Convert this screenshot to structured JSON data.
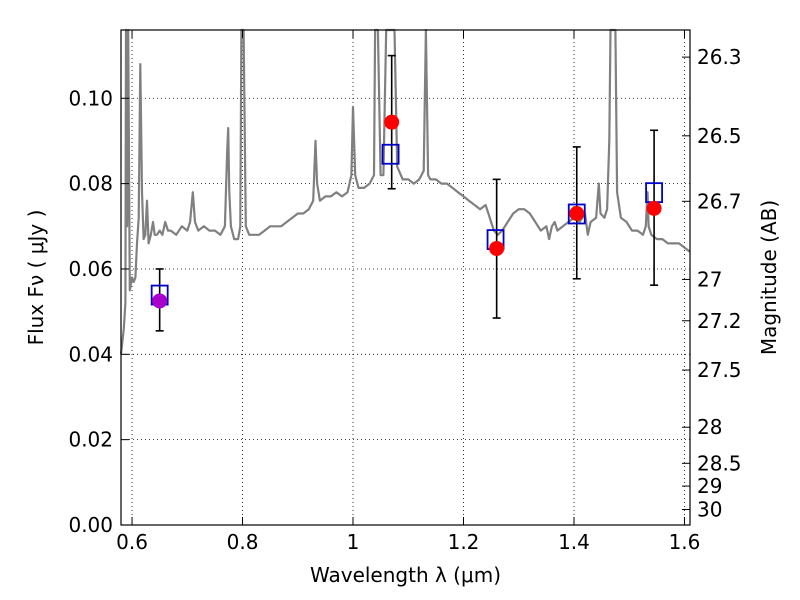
{
  "chart_data": {
    "type": "scatter",
    "xlabel": "Wavelength  λ (μm)",
    "ylabel": "Flux  Fν  ( μJy )",
    "ylabel_right": "Magnitude (AB)",
    "xlim": [
      0.58,
      1.61
    ],
    "ylim": [
      0.0,
      0.116
    ],
    "grid": true,
    "x_ticks": [
      0.6,
      0.8,
      1.0,
      1.2,
      1.4,
      1.6
    ],
    "x_tick_labels": [
      "0.6",
      "0.8",
      "1",
      "1.2",
      "1.4",
      "1.6"
    ],
    "y_ticks": [
      0.0,
      0.02,
      0.04,
      0.06,
      0.08,
      0.1
    ],
    "y_tick_labels": [
      "0.00",
      "0.02",
      "0.04",
      "0.06",
      "0.08",
      "0.10"
    ],
    "right_ticks": [
      {
        "label": "26.3",
        "value": 26.3
      },
      {
        "label": "26.5",
        "value": 26.5
      },
      {
        "label": "26.7",
        "value": 26.7
      },
      {
        "label": "27",
        "value": 27.0
      },
      {
        "label": "27.2",
        "value": 27.2
      },
      {
        "label": "27.5",
        "value": 27.5
      },
      {
        "label": "28",
        "value": 28.0
      },
      {
        "label": "28.5",
        "value": 28.5
      },
      {
        "label": "29",
        "value": 29.0
      },
      {
        "label": "30",
        "value": 30.0
      }
    ],
    "model_spectrum": {
      "color": "#808080",
      "points": [
        [
          0.58,
          0.04
        ],
        [
          0.585,
          0.046
        ],
        [
          0.588,
          0.052
        ],
        [
          0.589,
          0.12
        ],
        [
          0.591,
          0.07
        ],
        [
          0.593,
          0.12
        ],
        [
          0.596,
          0.055
        ],
        [
          0.6,
          0.058
        ],
        [
          0.603,
          0.057
        ],
        [
          0.606,
          0.058
        ],
        [
          0.609,
          0.066
        ],
        [
          0.612,
          0.072
        ],
        [
          0.615,
          0.108
        ],
        [
          0.618,
          0.078
        ],
        [
          0.621,
          0.067
        ],
        [
          0.624,
          0.068
        ],
        [
          0.627,
          0.076
        ],
        [
          0.63,
          0.066
        ],
        [
          0.634,
          0.068
        ],
        [
          0.638,
          0.071
        ],
        [
          0.641,
          0.068
        ],
        [
          0.645,
          0.068
        ],
        [
          0.65,
          0.069
        ],
        [
          0.655,
          0.068
        ],
        [
          0.66,
          0.071
        ],
        [
          0.665,
          0.069
        ],
        [
          0.67,
          0.069
        ],
        [
          0.68,
          0.068
        ],
        [
          0.69,
          0.07
        ],
        [
          0.7,
          0.069
        ],
        [
          0.705,
          0.071
        ],
        [
          0.71,
          0.078
        ],
        [
          0.714,
          0.071
        ],
        [
          0.72,
          0.069
        ],
        [
          0.73,
          0.07
        ],
        [
          0.74,
          0.069
        ],
        [
          0.75,
          0.069
        ],
        [
          0.76,
          0.068
        ],
        [
          0.768,
          0.07
        ],
        [
          0.772,
          0.087
        ],
        [
          0.774,
          0.093
        ],
        [
          0.776,
          0.078
        ],
        [
          0.779,
          0.07
        ],
        [
          0.785,
          0.067
        ],
        [
          0.792,
          0.067
        ],
        [
          0.796,
          0.07
        ],
        [
          0.798,
          0.12
        ],
        [
          0.802,
          0.12
        ],
        [
          0.806,
          0.07
        ],
        [
          0.812,
          0.068
        ],
        [
          0.82,
          0.068
        ],
        [
          0.83,
          0.068
        ],
        [
          0.84,
          0.069
        ],
        [
          0.85,
          0.07
        ],
        [
          0.86,
          0.07
        ],
        [
          0.87,
          0.07
        ],
        [
          0.88,
          0.071
        ],
        [
          0.89,
          0.072
        ],
        [
          0.9,
          0.073
        ],
        [
          0.91,
          0.073
        ],
        [
          0.92,
          0.074
        ],
        [
          0.928,
          0.076
        ],
        [
          0.932,
          0.09
        ],
        [
          0.935,
          0.08
        ],
        [
          0.94,
          0.076
        ],
        [
          0.95,
          0.077
        ],
        [
          0.96,
          0.077
        ],
        [
          0.97,
          0.078
        ],
        [
          0.98,
          0.077
        ],
        [
          0.99,
          0.078
        ],
        [
          0.997,
          0.082
        ],
        [
          1.0,
          0.098
        ],
        [
          1.004,
          0.082
        ],
        [
          1.01,
          0.079
        ],
        [
          1.02,
          0.079
        ],
        [
          1.03,
          0.08
        ],
        [
          1.038,
          0.082
        ],
        [
          1.04,
          0.12
        ],
        [
          1.045,
          0.12
        ],
        [
          1.05,
          0.082
        ],
        [
          1.055,
          0.082
        ],
        [
          1.06,
          0.12
        ],
        [
          1.075,
          0.12
        ],
        [
          1.08,
          0.084
        ],
        [
          1.09,
          0.081
        ],
        [
          1.1,
          0.081
        ],
        [
          1.11,
          0.08
        ],
        [
          1.12,
          0.081
        ],
        [
          1.128,
          0.083
        ],
        [
          1.132,
          0.12
        ],
        [
          1.136,
          0.082
        ],
        [
          1.14,
          0.081
        ],
        [
          1.15,
          0.081
        ],
        [
          1.16,
          0.08
        ],
        [
          1.17,
          0.08
        ],
        [
          1.18,
          0.079
        ],
        [
          1.19,
          0.078
        ],
        [
          1.2,
          0.077
        ],
        [
          1.21,
          0.076
        ],
        [
          1.22,
          0.075
        ],
        [
          1.23,
          0.074
        ],
        [
          1.24,
          0.075
        ],
        [
          1.245,
          0.073
        ],
        [
          1.25,
          0.071
        ],
        [
          1.255,
          0.069
        ],
        [
          1.262,
          0.068
        ],
        [
          1.27,
          0.069
        ],
        [
          1.28,
          0.071
        ],
        [
          1.29,
          0.073
        ],
        [
          1.3,
          0.074
        ],
        [
          1.31,
          0.074
        ],
        [
          1.32,
          0.073
        ],
        [
          1.33,
          0.071
        ],
        [
          1.34,
          0.069
        ],
        [
          1.35,
          0.07
        ],
        [
          1.355,
          0.067
        ],
        [
          1.36,
          0.07
        ],
        [
          1.365,
          0.071
        ],
        [
          1.37,
          0.069
        ],
        [
          1.38,
          0.07
        ],
        [
          1.39,
          0.071
        ],
        [
          1.4,
          0.072
        ],
        [
          1.41,
          0.071
        ],
        [
          1.42,
          0.073
        ],
        [
          1.425,
          0.068
        ],
        [
          1.43,
          0.071
        ],
        [
          1.44,
          0.072
        ],
        [
          1.445,
          0.08
        ],
        [
          1.448,
          0.073
        ],
        [
          1.455,
          0.072
        ],
        [
          1.46,
          0.074
        ],
        [
          1.464,
          0.09
        ],
        [
          1.466,
          0.12
        ],
        [
          1.475,
          0.12
        ],
        [
          1.478,
          0.078
        ],
        [
          1.485,
          0.072
        ],
        [
          1.495,
          0.071
        ],
        [
          1.505,
          0.069
        ],
        [
          1.515,
          0.069
        ],
        [
          1.525,
          0.068
        ],
        [
          1.53,
          0.07
        ],
        [
          1.533,
          0.078
        ],
        [
          1.535,
          0.07
        ],
        [
          1.54,
          0.068
        ],
        [
          1.55,
          0.067
        ],
        [
          1.56,
          0.067
        ],
        [
          1.57,
          0.066
        ],
        [
          1.58,
          0.066
        ],
        [
          1.59,
          0.066
        ],
        [
          1.6,
          0.065
        ],
        [
          1.61,
          0.064
        ]
      ]
    },
    "observed": {
      "color": "#ff0000",
      "points": [
        {
          "x": 0.65,
          "y": 0.0525,
          "yerr_low": 0.0455,
          "yerr_high": 0.06,
          "color": "#aa00cc"
        },
        {
          "x": 1.07,
          "y": 0.0944,
          "yerr_low": 0.0788,
          "yerr_high": 0.11
        },
        {
          "x": 1.26,
          "y": 0.0648,
          "yerr_low": 0.0485,
          "yerr_high": 0.081
        },
        {
          "x": 1.405,
          "y": 0.073,
          "yerr_low": 0.0577,
          "yerr_high": 0.0886
        },
        {
          "x": 1.545,
          "y": 0.0742,
          "yerr_low": 0.0562,
          "yerr_high": 0.0925
        }
      ]
    },
    "model_photometry": {
      "color": "#0000cc",
      "points": [
        {
          "x": 0.65,
          "y": 0.054
        },
        {
          "x": 1.068,
          "y": 0.087
        },
        {
          "x": 1.258,
          "y": 0.067
        },
        {
          "x": 1.405,
          "y": 0.073
        },
        {
          "x": 1.545,
          "y": 0.078
        }
      ]
    }
  }
}
